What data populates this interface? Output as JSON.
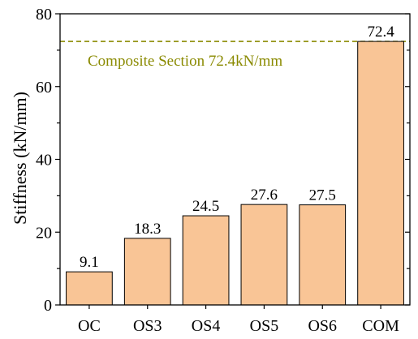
{
  "chart_data": {
    "type": "bar",
    "categories": [
      "OC",
      "OS3",
      "OS4",
      "OS5",
      "OS6",
      "COM"
    ],
    "values": [
      9.1,
      18.3,
      24.5,
      27.6,
      27.5,
      72.4
    ],
    "data_labels": [
      "9.1",
      "18.3",
      "24.5",
      "27.6",
      "27.5",
      "72.4"
    ],
    "ylabel": "Stiffness (kN/mm)",
    "xlabel": "",
    "title": "",
    "ylim": [
      0,
      80
    ],
    "yticks": [
      0,
      20,
      40,
      60,
      80
    ],
    "grid": false,
    "reference_line": {
      "value": 72.4,
      "label": "Composite Section 72.4kN/mm",
      "style": "dashed",
      "color": "#8a8a00"
    },
    "colors": {
      "bar_fill": "#f9c596",
      "bar_stroke": "#000000",
      "axis": "#000000"
    }
  }
}
